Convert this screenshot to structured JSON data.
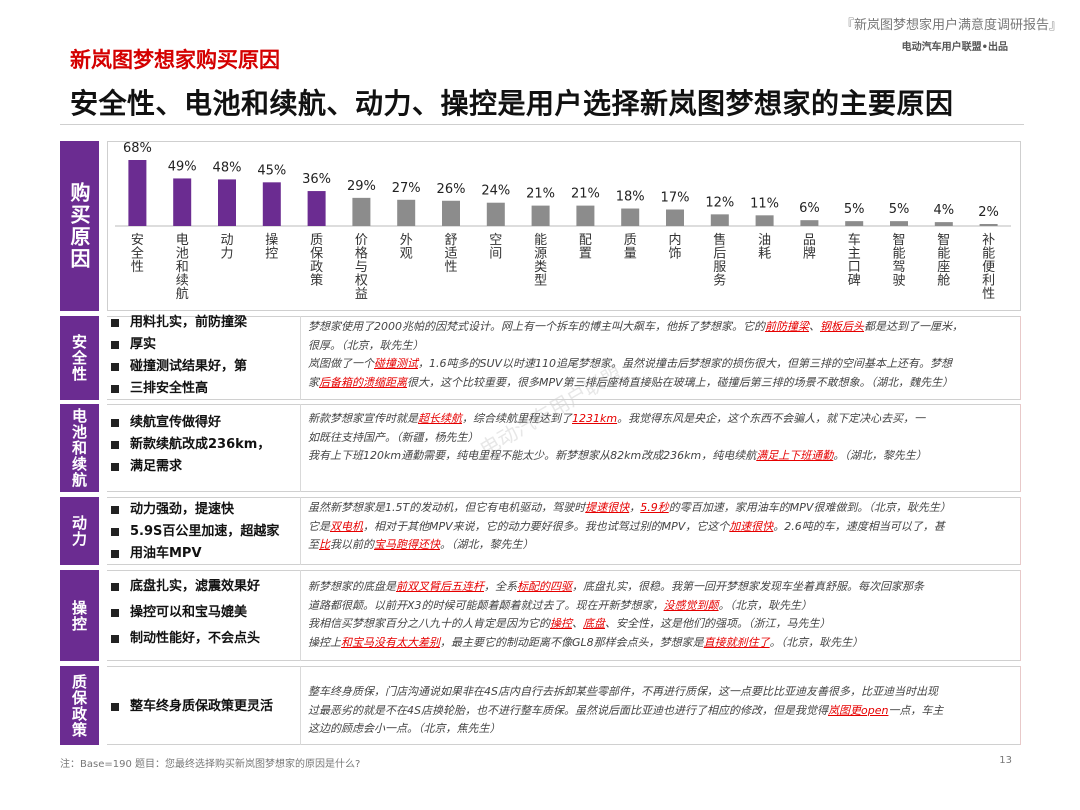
{
  "header": {
    "report_title": "『新岚图梦想家用户满意度调研报告』",
    "report_subtitle": "电动汽车用户联盟•出品",
    "section_title": "新岚图梦想家购买原因",
    "headline": "安全性、电池和续航、动力、操控是用户选择新岚图梦想家的主要原因"
  },
  "side_label": "购买原因",
  "colors": {
    "purple": "#6b2c91",
    "gray": "#8c8c8c",
    "red": "#e60000"
  },
  "chart_data": {
    "type": "bar",
    "categories": [
      "安全性",
      "电池和续航",
      "动力",
      "操控",
      "质保政策",
      "价格与权益",
      "外观",
      "舒适性",
      "空间",
      "能源类型",
      "配置",
      "质量",
      "内饰",
      "售后服务",
      "油耗",
      "品牌",
      "车主口碑",
      "智能驾驶",
      "智能座舱",
      "补能便利性"
    ],
    "values": [
      68,
      49,
      48,
      45,
      36,
      29,
      27,
      26,
      24,
      21,
      21,
      18,
      17,
      12,
      11,
      6,
      5,
      5,
      4,
      2
    ],
    "data_labels": [
      "68%",
      "49%",
      "48%",
      "45%",
      "36%",
      "29%",
      "27%",
      "26%",
      "24%",
      "21%",
      "21%",
      "18%",
      "17%",
      "12%",
      "11%",
      "6%",
      "5%",
      "5%",
      "4%",
      "2%"
    ],
    "highlighted_count": 5,
    "highlight_color": "#6b2c91",
    "other_color": "#8c8c8c",
    "unit": "%"
  },
  "rows": [
    {
      "label": "安全性",
      "points": [
        "用料扎实，前防撞梁",
        "厚实",
        "碰撞测试结果好，第",
        "三排安全性高"
      ],
      "quotes": [
        [
          "梦想家使用了2000兆帕的因梵式设计。网上有一个拆车的博主叫大飙车，他拆了梦想家。它的",
          {
            "hl": "前防撞梁"
          },
          "、",
          {
            "hl": "钢板后头"
          },
          "都是达到了一厘米，"
        ],
        [
          "很厚。（北京，耿先生）"
        ],
        [
          "岚图做了一个",
          {
            "hl": "碰撞测试"
          },
          "，1.6吨多的SUV以时速110追尾梦想家。虽然说撞击后梦想家的损伤很大，但第三排的空间基本上还有。梦想"
        ],
        [
          "家",
          {
            "hl": "后备箱的溃缩距离"
          },
          "很大，这个比较重要，很多MPV第三排后座椅直接贴在玻璃上，碰撞后第三排的场景不敢想象。（湖北，魏先生）"
        ]
      ]
    },
    {
      "label": "电池和续航",
      "points": [
        "续航宣传做得好",
        "新款续航改成236km，",
        "满足需求"
      ],
      "quotes": [
        [
          "新款梦想家宣传时就是",
          {
            "hl": "超长续航"
          },
          "，综合续航里程达到了",
          {
            "hl": "1231km"
          },
          "。我觉得东风是央企，这个东西不会骗人，就下定决心去买，一"
        ],
        [
          "如既往支持国产。（新疆，杨先生）"
        ],
        [
          "我有上下班120km通勤需要，纯电里程不能太少。新梦想家从82km改成236km，纯电续航",
          {
            "hl": "满足上下班通勤"
          },
          "。（湖北，黎先生）"
        ]
      ]
    },
    {
      "label": "动力",
      "points": [
        "动力强劲，提速快",
        "5.9S百公里加速，超越家",
        "用油车MPV"
      ],
      "quotes": [
        [
          "虽然新梦想家是1.5T的发动机，但它有电机驱动，驾驶时",
          {
            "hl": "提速很快"
          },
          "，",
          {
            "hl": "5.9秒"
          },
          "的零百加速，家用油车的MPV很难做到。（北京，耿先生）"
        ],
        [
          "它是",
          {
            "hl": "双电机"
          },
          "，相对于其他MPV来说，它的动力要好很多。我也试驾过别的MPV，它这个",
          {
            "hl": "加速很快"
          },
          "。2.6吨的车，速度相当可以了，甚"
        ],
        [
          "至",
          {
            "hl": "比"
          },
          "我以前的",
          {
            "hl": "宝马跑得还快"
          },
          "。（湖北，黎先生）"
        ]
      ]
    },
    {
      "label": "操控",
      "points": [
        "底盘扎实，滤震效果好",
        "操控可以和宝马媲美",
        "制动性能好，不会点头"
      ],
      "quotes": [
        [
          "新梦想家的底盘是",
          {
            "hl": "前双叉臂后五连杆"
          },
          "，全系",
          {
            "hl": "标配的四驱"
          },
          "，底盘扎实，很稳。我第一回开梦想家发现车坐着真舒服。每次回家那条"
        ],
        [
          "道路都很颠。以前开X3的时候可能颠着颠着就过去了。现在开新梦想家，",
          {
            "hl": "没感觉到颠"
          },
          "。（北京，耿先生）"
        ],
        [
          "我相信买梦想家百分之八九十的人肯定是因为它的",
          {
            "hl": "操控"
          },
          "、",
          {
            "hl": "底盘"
          },
          "、安全性，这是他们的强项。（浙江，马先生）"
        ],
        [
          "操控上",
          {
            "hl": "和宝马没有太大差别"
          },
          "，最主要它的制动距离不像GL8那样会点头，梦想家是",
          {
            "hl": "直接就刹住了"
          },
          "。（北京，耿先生）"
        ]
      ]
    },
    {
      "label": "质保政策",
      "points": [
        "整车终身质保政策更灵活"
      ],
      "quotes": [
        [
          "整车终身质保，门店沟通说如果非在4S店内自行去拆卸某些零部件，不再进行质保，这一点要比比亚迪友善很多，比亚迪当时出现"
        ],
        [
          "过最恶劣的就是不在4S店换轮胎，也不进行整车质保。虽然说后面比亚迪也进行了相应的修改，但是我觉得",
          {
            "hl": "岚图更open"
          },
          "一点，车主"
        ],
        [
          "这边的顾虑会小一点。（北京，焦先生）"
        ]
      ]
    }
  ],
  "footnote": "注：Base=190   题目：您最终选择购买新岚图梦想家的原因是什么?",
  "page_number": "13",
  "watermark": "电动汽车用户联盟"
}
